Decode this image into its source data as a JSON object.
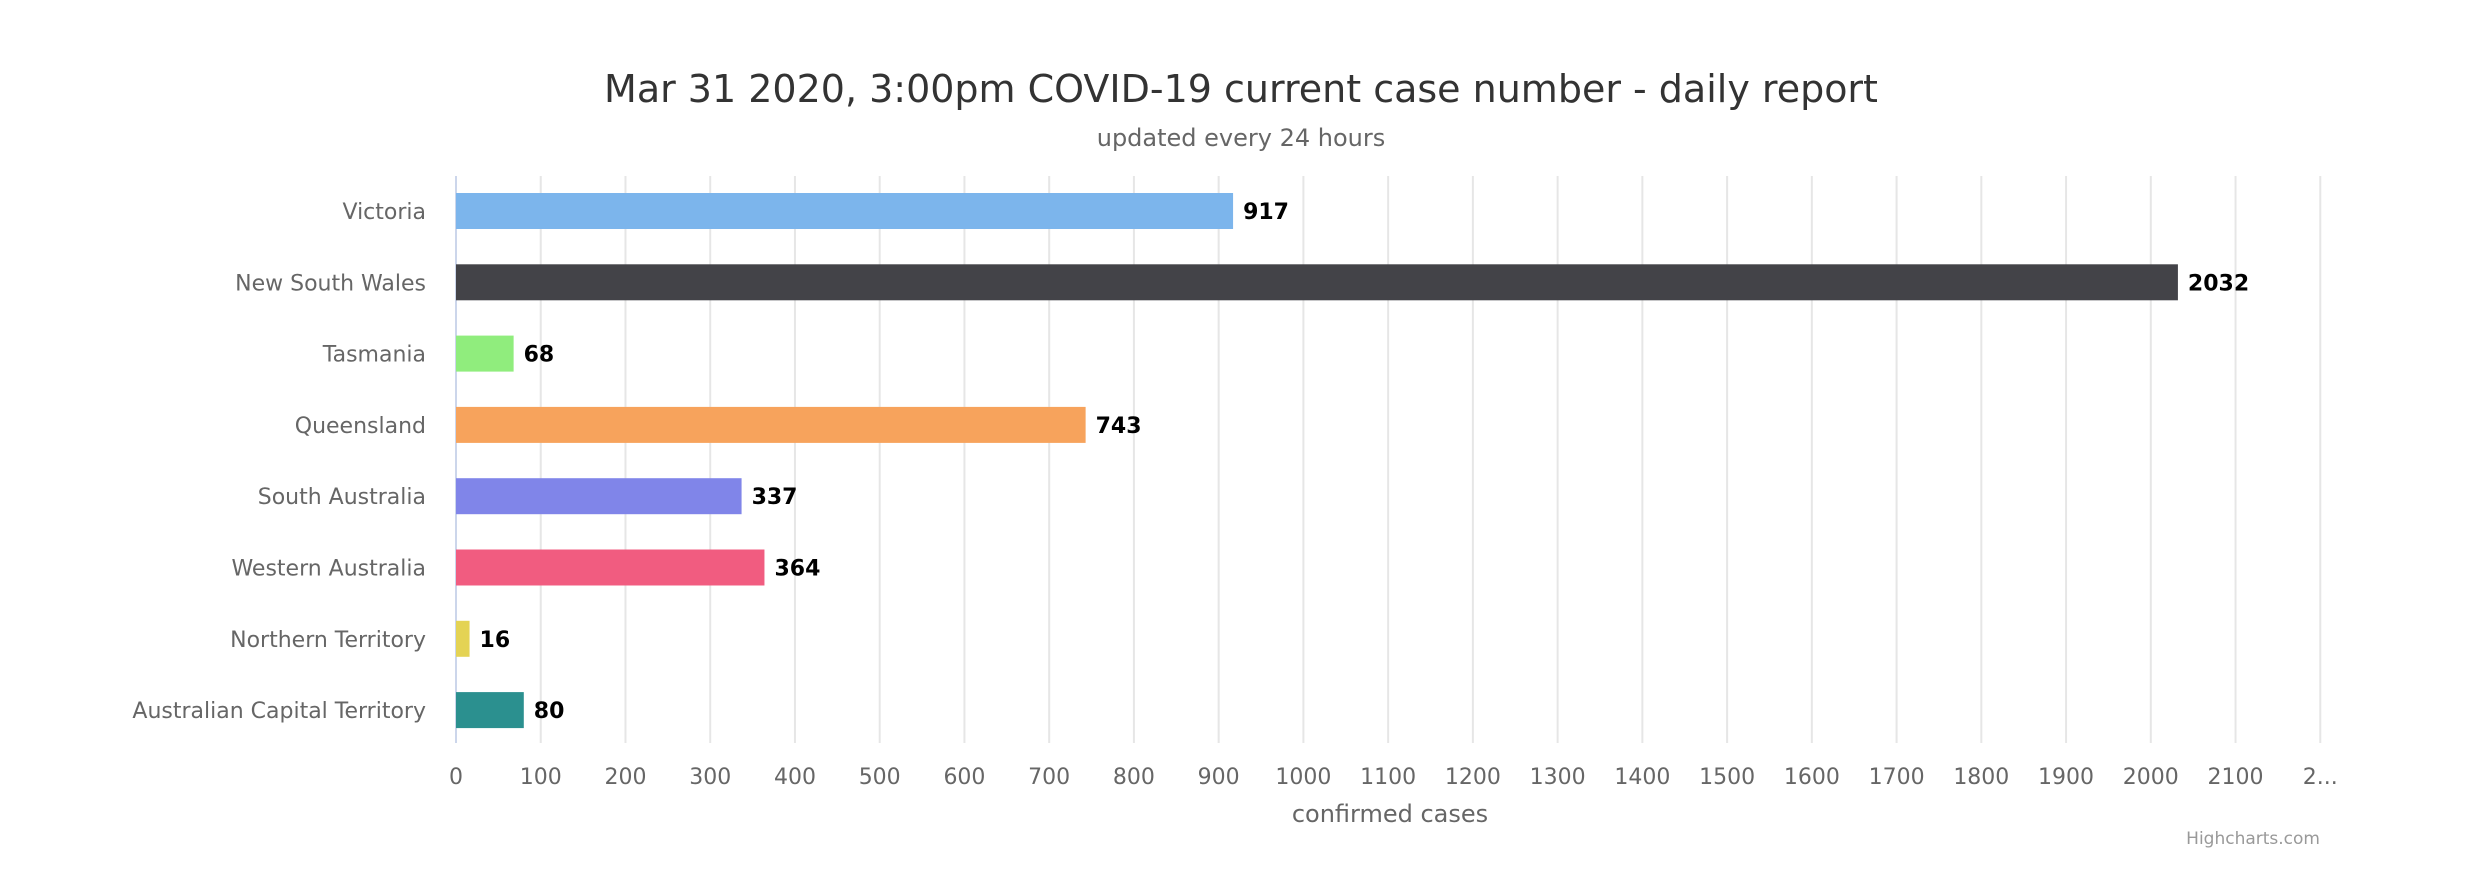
{
  "chart_data": {
    "type": "bar",
    "orientation": "horizontal",
    "title": "Mar 31 2020, 3:00pm COVID-19 current case number - daily report",
    "subtitle": "updated every 24 hours",
    "xlabel": "confirmed cases",
    "ylabel": "",
    "categories": [
      "Victoria",
      "New South Wales",
      "Tasmania",
      "Queensland",
      "South Australia",
      "Western Australia",
      "Northern Territory",
      "Australian Capital Territory"
    ],
    "values": [
      917,
      2032,
      68,
      743,
      337,
      364,
      16,
      80
    ],
    "colors": [
      "#7cb5ec",
      "#434348",
      "#90ed7d",
      "#f7a35c",
      "#8085e9",
      "#f15c80",
      "#e4d354",
      "#2b908f"
    ],
    "xlim": [
      0,
      2200
    ],
    "ticks": [
      "0",
      "100",
      "200",
      "300",
      "400",
      "500",
      "600",
      "700",
      "800",
      "900",
      "1000",
      "1100",
      "1200",
      "1300",
      "1400",
      "1500",
      "1600",
      "1700",
      "1800",
      "1900",
      "2000",
      "2100",
      "2..."
    ],
    "data_labels": true,
    "grid": true,
    "legend": false
  },
  "credits": "Highcharts.com"
}
